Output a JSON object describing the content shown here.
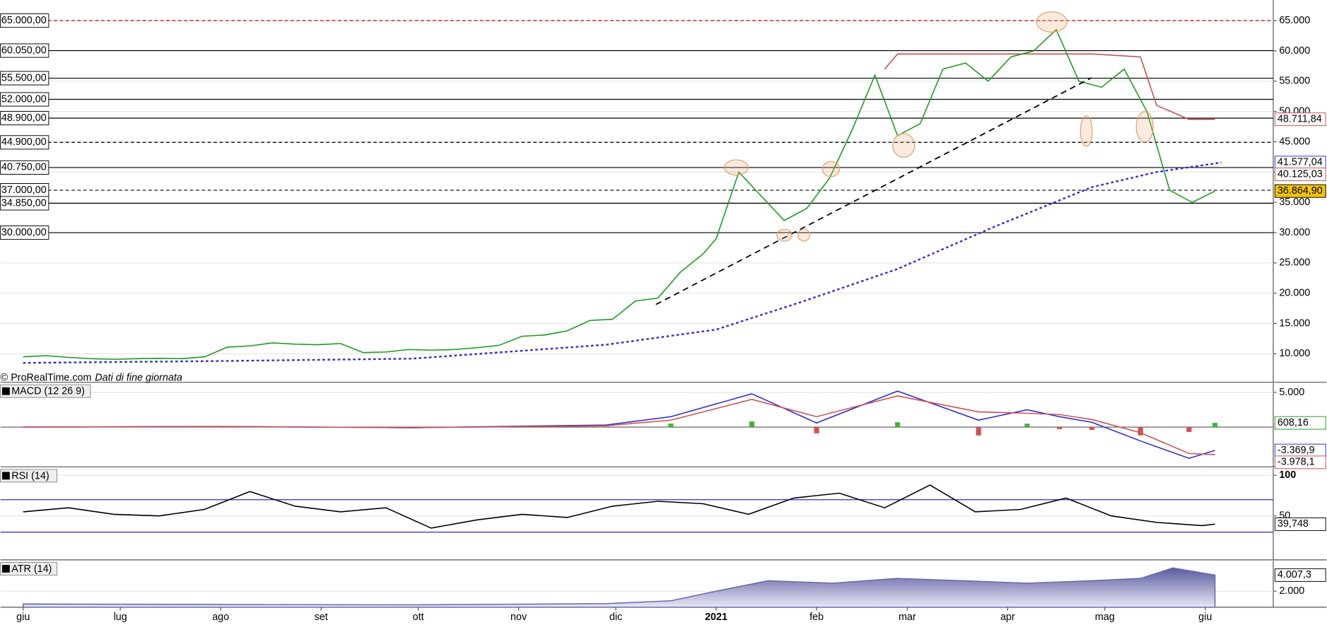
{
  "chart_data": [
    {
      "type": "line",
      "panel": "price",
      "x": [
        0,
        7,
        14,
        21,
        28,
        35,
        42,
        49,
        56,
        63,
        70,
        77,
        84,
        91,
        98,
        105,
        112,
        119,
        126,
        133,
        140,
        147,
        154,
        161,
        168,
        175,
        182,
        189,
        196,
        203,
        210,
        214,
        221,
        228,
        235,
        242,
        249,
        256,
        263,
        270,
        277,
        284,
        291,
        298,
        305,
        312,
        319,
        326,
        333,
        340,
        347,
        354,
        361,
        368
      ],
      "series": [
        {
          "color": "#1a9a1a",
          "values": [
            9500,
            9700,
            9400,
            9200,
            9100,
            9200,
            9250,
            9200,
            9500,
            11100,
            11300,
            11800,
            11600,
            11500,
            11700,
            10200,
            10300,
            10700,
            10600,
            10700,
            11000,
            11400,
            12900,
            13100,
            13800,
            15500,
            15700,
            18700,
            19200,
            23500,
            26500,
            29000,
            40000,
            36000,
            32000,
            34000,
            39000,
            47000,
            56000,
            46000,
            48000,
            57000,
            58000,
            55000,
            59000,
            60000,
            63500,
            55000,
            54000,
            57000,
            50000,
            37000,
            35000,
            36865
          ]
        }
      ],
      "overlays": [
        {
          "color": "#2b2bd6",
          "dash": true,
          "x": [
            0,
            60,
            120,
            180,
            214,
            240,
            270,
            300,
            330,
            350,
            370
          ],
          "values": [
            8500,
            8800,
            9200,
            11500,
            14000,
            18500,
            24000,
            31000,
            37500,
            40000,
            41577
          ]
        },
        {
          "color": "#c0504d",
          "dash": false,
          "x": [
            266,
            270,
            300,
            330,
            345,
            350,
            360,
            368
          ],
          "values": [
            57000,
            59500,
            59500,
            59500,
            59000,
            51000,
            48700,
            48712
          ]
        }
      ],
      "levels": [
        {
          "value": 65000,
          "label": "65.000,00",
          "dash": true,
          "color": "#c00000"
        },
        {
          "value": 60050,
          "label": "60.050,00",
          "dash": false,
          "color": "#000000"
        },
        {
          "value": 55500,
          "label": "55.500,00",
          "dash": false,
          "color": "#000000"
        },
        {
          "value": 52000,
          "label": "52.000,00",
          "dash": false,
          "color": "#000000"
        },
        {
          "value": 48900,
          "label": "48.900,00",
          "dash": false,
          "color": "#000000"
        },
        {
          "value": 44900,
          "label": "44.900,00",
          "dash": true,
          "color": "#000000"
        },
        {
          "value": 40750,
          "label": "40.750,00",
          "dash": false,
          "color": "#000000"
        },
        {
          "value": 37000,
          "label": "37.000,00",
          "dash": true,
          "color": "#000000"
        },
        {
          "value": 34850,
          "label": "34.850,00",
          "dash": false,
          "color": "#000000"
        },
        {
          "value": 30000,
          "label": "30.000,00",
          "dash": false,
          "color": "#000000"
        }
      ],
      "last_labels": [
        {
          "value": 48711.84,
          "label": "48.711,84",
          "color": "#c0504d",
          "bg": "#ffffff"
        },
        {
          "value": 41577.04,
          "label": "41.577,04",
          "color": "#2b2bd6",
          "bg": "#ffffff"
        },
        {
          "value": 40125.03,
          "label": "40.125,03",
          "color": "#c0504d",
          "bg": "#ffffff"
        },
        {
          "value": 36864.9,
          "label": "36.864,90",
          "color": "#000000",
          "bg": "#f5c400"
        }
      ],
      "xlim": [
        -7,
        386
      ],
      "xticks": [
        {
          "value": 0,
          "label": "giu"
        },
        {
          "value": 30,
          "label": "lug"
        },
        {
          "value": 61,
          "label": "ago"
        },
        {
          "value": 92,
          "label": "set"
        },
        {
          "value": 122,
          "label": "ott"
        },
        {
          "value": 153,
          "label": "nov"
        },
        {
          "value": 183,
          "label": "dic"
        },
        {
          "value": 214,
          "label": "2021",
          "bold": true
        },
        {
          "value": 245,
          "label": "feb"
        },
        {
          "value": 273,
          "label": "mar"
        },
        {
          "value": 304,
          "label": "apr"
        },
        {
          "value": 334,
          "label": "mag"
        },
        {
          "value": 365,
          "label": "giu"
        }
      ],
      "ylim": [
        5300,
        68400
      ],
      "yticks": [
        {
          "value": 10000,
          "label": "10.000"
        },
        {
          "value": 15000,
          "label": "15.000"
        },
        {
          "value": 20000,
          "label": "20.000"
        },
        {
          "value": 25000,
          "label": "25.000"
        },
        {
          "value": 30000,
          "label": "30.000"
        },
        {
          "value": 35000,
          "label": "35.000"
        },
        {
          "value": 40000,
          "label": "40.000"
        },
        {
          "value": 45000,
          "label": "45.000"
        },
        {
          "value": 50000,
          "label": "50.000"
        },
        {
          "value": 55000,
          "label": "55.000"
        },
        {
          "value": 60000,
          "label": "60.000"
        },
        {
          "value": 65000,
          "label": "65.000"
        }
      ],
      "source": "© ProRealTime.com",
      "source_note": "Dati di fine giornata"
    },
    {
      "type": "line",
      "panel": "macd",
      "title": "MACD (12 26 9)",
      "x": [
        0,
        60,
        120,
        180,
        200,
        225,
        245,
        270,
        295,
        310,
        320,
        330,
        345,
        360,
        368
      ],
      "series": [
        {
          "color": "#2b2bd6",
          "values": [
            0,
            100,
            -100,
            300,
            1500,
            4800,
            600,
            5200,
            1000,
            2500,
            1500,
            700,
            -2000,
            -4500,
            -3370
          ]
        },
        {
          "color": "#d05050",
          "values": [
            0,
            80,
            -80,
            200,
            1000,
            4000,
            1500,
            4500,
            2200,
            2000,
            1800,
            1100,
            -800,
            -3800,
            -3978
          ]
        }
      ],
      "histogram": [
        0,
        20,
        -20,
        100,
        500,
        800,
        -900,
        700,
        -1200,
        500,
        -300,
        -400,
        -1200,
        -700,
        608
      ],
      "last_labels": [
        {
          "value": 608.16,
          "label": "608,16",
          "color": "#1a9a1a",
          "bg": "#ffffff"
        },
        {
          "value": -3369.9,
          "label": "-3.369,9",
          "color": "#2b2bd6",
          "bg": "#ffffff"
        },
        {
          "value": -3978.1,
          "label": "-3.978,1",
          "color": "#c0504d",
          "bg": "#ffffff"
        }
      ],
      "ylim": [
        -5730,
        6340
      ],
      "yticks": [
        {
          "value": 5000,
          "label": "5.000"
        }
      ]
    },
    {
      "type": "line",
      "panel": "rsi",
      "title": "RSI (14)",
      "x": [
        0,
        14,
        28,
        42,
        56,
        70,
        84,
        98,
        112,
        126,
        140,
        154,
        168,
        182,
        196,
        210,
        224,
        238,
        252,
        266,
        280,
        294,
        308,
        322,
        336,
        350,
        364,
        368
      ],
      "series": [
        {
          "color": "#000000",
          "values": [
            55,
            60,
            52,
            50,
            58,
            80,
            62,
            55,
            60,
            35,
            45,
            52,
            48,
            62,
            68,
            65,
            52,
            72,
            78,
            60,
            88,
            55,
            58,
            72,
            50,
            42,
            38,
            39.748
          ]
        }
      ],
      "levels": [
        {
          "value": 70,
          "color": "#2b2bd6"
        },
        {
          "value": 30,
          "color": "#2b2bd6"
        }
      ],
      "last_labels": [
        {
          "value": 39.748,
          "label": "39,748",
          "color": "#000000",
          "bg": "#ffffff"
        }
      ],
      "ylim": [
        -4.2,
        109.4
      ],
      "yticks": [
        100,
        50
      ]
    },
    {
      "type": "area",
      "panel": "atr",
      "title": "ATR (14)",
      "x": [
        0,
        60,
        120,
        180,
        200,
        214,
        230,
        250,
        270,
        290,
        310,
        330,
        345,
        355,
        368
      ],
      "series": [
        {
          "color": "#6a6aa8",
          "values": [
            400,
            350,
            300,
            450,
            800,
            2000,
            3300,
            3000,
            3600,
            3300,
            3000,
            3300,
            3600,
            4900,
            4007.3
          ]
        }
      ],
      "last_labels": [
        {
          "value": 4007.3,
          "label": "4.007,3",
          "color": "#000000",
          "bg": "#ffffff"
        }
      ],
      "ylim": [
        0,
        5800
      ],
      "yticks": [
        {
          "value": 2000,
          "label": "2.000"
        }
      ]
    }
  ]
}
